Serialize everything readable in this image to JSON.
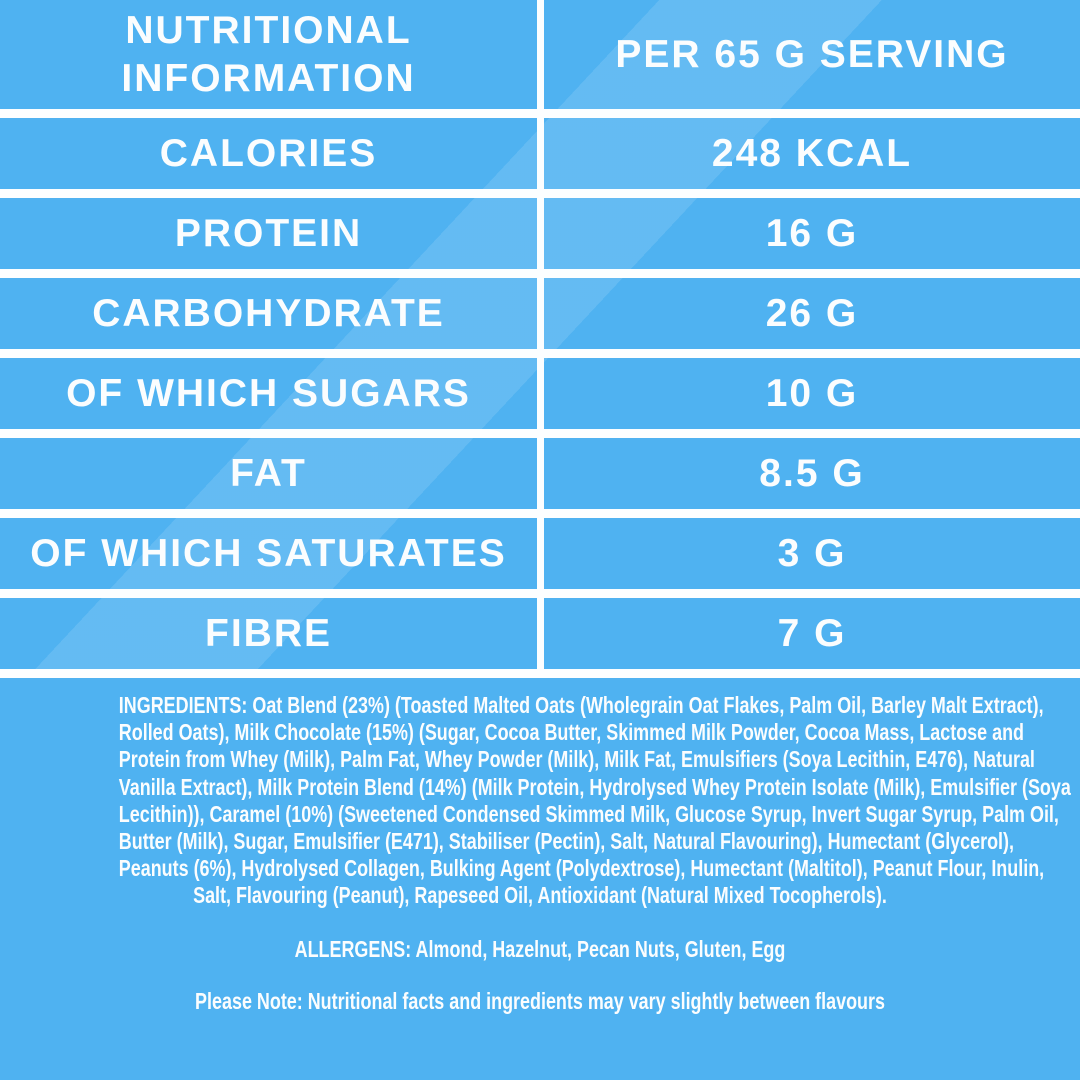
{
  "colors": {
    "background": "#4FB2F1",
    "divider": "#FCFEFF",
    "text": "#FBFDFE",
    "sheen": "rgba(255,255,255,0.12)"
  },
  "table": {
    "header": {
      "label": "NUTRITIONAL INFORMATION",
      "value": "PER 65 G SERVING"
    },
    "rows": [
      {
        "label": "CALORIES",
        "value": "248 KCAL"
      },
      {
        "label": "PROTEIN",
        "value": "16 G"
      },
      {
        "label": "CARBOHYDRATE",
        "value": "26 G"
      },
      {
        "label": "OF WHICH SUGARS",
        "value": "10 G"
      },
      {
        "label": "FAT",
        "value": "8.5 G"
      },
      {
        "label": "OF WHICH SATURATES",
        "value": "3 G"
      },
      {
        "label": "FIBRE",
        "value": "7 G"
      }
    ]
  },
  "footer": {
    "ingredients_lines": [
      "INGREDIENTS: Oat Blend (23%) (Toasted Malted Oats (Wholegrain Oat Flakes, Palm Oil, Barley Malt Extract),",
      "Rolled Oats), Milk Chocolate (15%) (Sugar, Cocoa Butter, Skimmed Milk Powder, Cocoa Mass, Lactose and",
      "Protein from Whey (Milk), Palm Fat, Whey Powder (Milk), Milk Fat, Emulsifiers (Soya Lecithin, E476), Natural",
      "Vanilla Extract), Milk Protein Blend (14%) (Milk Protein, Hydrolysed Whey Protein Isolate (Milk), Emulsifier (Soya",
      "Lecithin)), Caramel (10%) (Sweetened Condensed Skimmed Milk, Glucose Syrup, Invert Sugar Syrup, Palm Oil,",
      "Butter (Milk), Sugar, Emulsifier (E471), Stabiliser (Pectin), Salt, Natural Flavouring), Humectant (Glycerol),",
      "Peanuts (6%), Hydrolysed Collagen, Bulking Agent (Polydextrose), Humectant (Maltitol), Peanut Flour, Inulin,",
      "Salt, Flavouring (Peanut), Rapeseed Oil, Antioxidant (Natural Mixed Tocopherols)."
    ],
    "allergens": "ALLERGENS: Almond, Hazelnut, Pecan Nuts, Gluten, Egg",
    "note": "Please Note: Nutritional facts and ingredients may vary slightly between flavours"
  }
}
